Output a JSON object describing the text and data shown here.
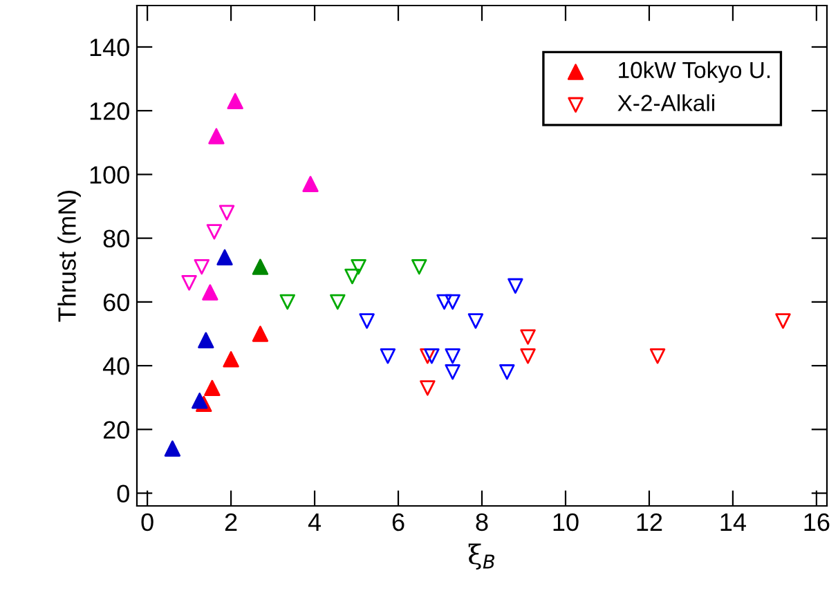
{
  "chart_data": {
    "type": "scatter",
    "xlabel": "ξ$_{B}$",
    "ylabel": "Thrust (mN)",
    "xlim": [
      -0.25,
      16.25
    ],
    "ylim": [
      -4,
      153
    ],
    "xticks": [
      0,
      2,
      4,
      6,
      8,
      10,
      12,
      14,
      16
    ],
    "yticks": [
      0,
      20,
      40,
      60,
      80,
      100,
      120,
      140
    ],
    "grid": false,
    "legend": "top right",
    "series": [
      {
        "name": "10kW Tokyo U.",
        "color": "#ff0000",
        "marker": "triangle",
        "x": [
          1.35,
          1.55,
          2.0,
          2.7
        ],
        "values": [
          28,
          33,
          42,
          50
        ]
      },
      {
        "name": "X-2-Alkali",
        "color": "#ff0000",
        "marker": "triangle-down-open",
        "x": [
          6.7,
          6.7,
          9.1,
          9.1,
          12.2,
          15.2
        ],
        "values": [
          43,
          33,
          49,
          43,
          43,
          54
        ]
      },
      {
        "color": "#0000cc",
        "marker": "triangle",
        "x": [
          0.6,
          1.25,
          1.4,
          1.85
        ],
        "values": [
          14,
          29,
          48,
          74
        ]
      },
      {
        "color": "#ff00cc",
        "marker": "triangle",
        "x": [
          1.5,
          1.65,
          2.1,
          3.9
        ],
        "values": [
          63,
          112,
          123,
          97
        ]
      },
      {
        "color": "#008800",
        "marker": "triangle",
        "x": [
          2.7
        ],
        "values": [
          71
        ]
      },
      {
        "color": "#ff00cc",
        "marker": "triangle-down-open",
        "x": [
          1.0,
          1.3,
          1.6,
          1.9
        ],
        "values": [
          66,
          71,
          82,
          88
        ]
      },
      {
        "color": "#00aa00",
        "marker": "triangle-down-open",
        "x": [
          3.35,
          4.55,
          4.9,
          5.05,
          6.5
        ],
        "values": [
          60,
          60,
          68,
          71,
          71
        ]
      },
      {
        "color": "#0000ff",
        "marker": "triangle-down-open",
        "x": [
          5.25,
          5.75,
          6.8,
          7.1,
          7.3,
          7.3,
          7.3,
          7.85,
          8.6,
          8.8
        ],
        "values": [
          54,
          43,
          43,
          60,
          60,
          43,
          38,
          54,
          38,
          65
        ]
      }
    ]
  }
}
